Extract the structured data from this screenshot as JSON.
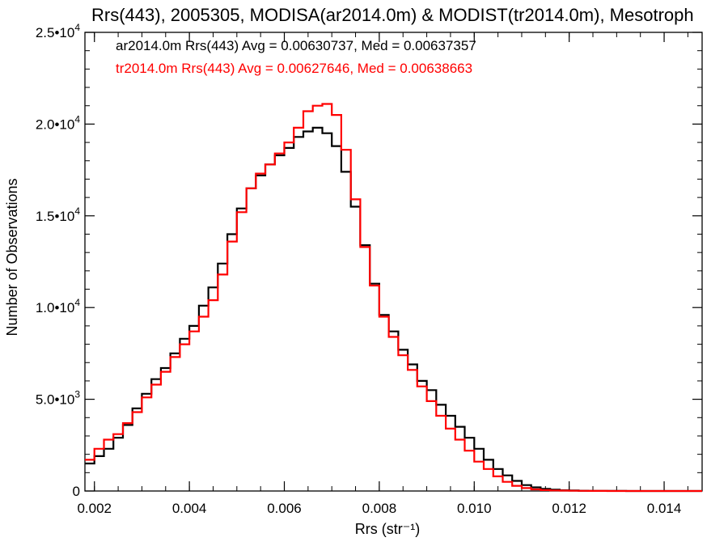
{
  "chart_data": {
    "type": "line",
    "title": "Rrs(443), 2005305, MODISA(ar2014.0m) & MODIST(tr2014.0m), Mesotroph",
    "xlabel": "Rrs (str⁻¹)",
    "ylabel": "Number of Observations",
    "xlim": [
      0.0018,
      0.0148
    ],
    "ylim": [
      0,
      25000
    ],
    "grid": false,
    "legend_position": "top-left",
    "x_ticks": [
      {
        "value": 0.002,
        "label": "0.002"
      },
      {
        "value": 0.004,
        "label": "0.004"
      },
      {
        "value": 0.006,
        "label": "0.006"
      },
      {
        "value": 0.008,
        "label": "0.008"
      },
      {
        "value": 0.01,
        "label": "0.010"
      },
      {
        "value": 0.012,
        "label": "0.012"
      },
      {
        "value": 0.014,
        "label": "0.014"
      }
    ],
    "y_ticks": [
      {
        "value": 0,
        "mant": "0",
        "exp": ""
      },
      {
        "value": 5000,
        "mant": "5.0•10",
        "exp": "3"
      },
      {
        "value": 10000,
        "mant": "1.0•10",
        "exp": "4"
      },
      {
        "value": 15000,
        "mant": "1.5•10",
        "exp": "4"
      },
      {
        "value": 20000,
        "mant": "2.0•10",
        "exp": "4"
      },
      {
        "value": 25000,
        "mant": "2.5•10",
        "exp": "4"
      }
    ],
    "x": [
      0.0018,
      0.002,
      0.0022,
      0.0024,
      0.0026,
      0.0028,
      0.003,
      0.0032,
      0.0034,
      0.0036,
      0.0038,
      0.004,
      0.0042,
      0.0044,
      0.0046,
      0.0048,
      0.005,
      0.0052,
      0.0054,
      0.0056,
      0.0058,
      0.006,
      0.0062,
      0.0064,
      0.0066,
      0.0068,
      0.007,
      0.0072,
      0.0074,
      0.0076,
      0.0078,
      0.008,
      0.0082,
      0.0084,
      0.0086,
      0.0088,
      0.009,
      0.0092,
      0.0094,
      0.0096,
      0.0098,
      0.01,
      0.0102,
      0.0104,
      0.0106,
      0.0108,
      0.011,
      0.0112,
      0.0114,
      0.0116,
      0.0118,
      0.012,
      0.0122,
      0.0124,
      0.0126,
      0.0128,
      0.013,
      0.0132,
      0.0134,
      0.0136,
      0.0138,
      0.014,
      0.0142,
      0.0144,
      0.0146,
      0.0148
    ],
    "series": [
      {
        "name": "ar2014.0m Rrs(443) Avg = 0.00630737, Med = 0.00637357",
        "color": "#000000",
        "values": [
          1500,
          1900,
          2300,
          2900,
          3600,
          4500,
          5300,
          6100,
          6700,
          7500,
          8300,
          9000,
          10100,
          11100,
          12400,
          14000,
          15400,
          16500,
          17200,
          17800,
          18300,
          18700,
          19300,
          19600,
          19800,
          19500,
          18800,
          17400,
          15500,
          13400,
          11300,
          9600,
          8700,
          7700,
          6900,
          6000,
          5500,
          4700,
          4100,
          3500,
          2900,
          2300,
          1700,
          1200,
          850,
          550,
          320,
          200,
          120,
          70,
          40,
          25,
          15,
          10,
          6,
          4,
          3,
          2,
          1,
          1,
          0,
          0,
          0,
          0,
          0,
          0
        ]
      },
      {
        "name": "tr2014.0m Rrs(443) Avg = 0.00627646, Med = 0.00638663",
        "color": "#ff0000",
        "values": [
          1700,
          2300,
          2800,
          3100,
          3700,
          4300,
          5100,
          5800,
          6500,
          7300,
          8000,
          8700,
          9500,
          10400,
          11800,
          13600,
          15200,
          16500,
          17300,
          17800,
          18400,
          19000,
          19800,
          20700,
          21000,
          21100,
          20500,
          18600,
          15900,
          13300,
          11200,
          9500,
          8400,
          7400,
          6600,
          5700,
          4900,
          4100,
          3400,
          2800,
          2200,
          1600,
          1200,
          800,
          500,
          280,
          160,
          90,
          50,
          30,
          20,
          12,
          8,
          5,
          3,
          2,
          1,
          1,
          0,
          0,
          0,
          0,
          0,
          0,
          0,
          0
        ]
      }
    ]
  }
}
